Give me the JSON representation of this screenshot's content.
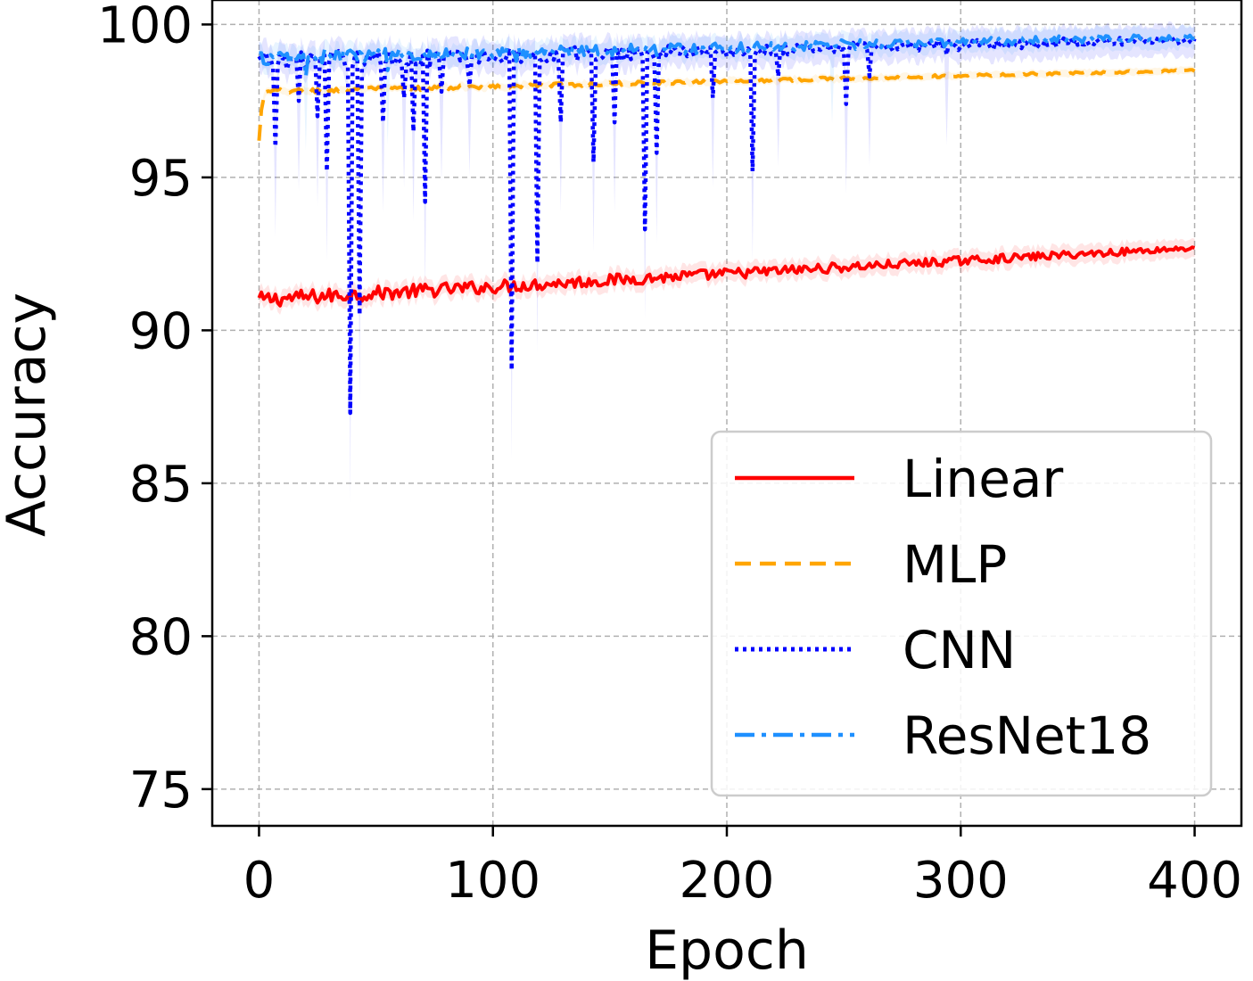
{
  "chart_data": {
    "type": "line",
    "title": "",
    "xlabel": "Epoch",
    "ylabel": "Accuracy",
    "xlim": [
      -20,
      420
    ],
    "ylim": [
      73.8,
      100.8
    ],
    "xticks": [
      0,
      100,
      200,
      300,
      400
    ],
    "yticks": [
      75,
      80,
      85,
      90,
      95,
      100
    ],
    "grid": true,
    "legend_position": "lower-right",
    "series": [
      {
        "name": "Linear",
        "color": "#ff0000",
        "style": "solid",
        "start": 91.0,
        "end": 92.7,
        "noise": 0.25,
        "band": 0.3,
        "dips": []
      },
      {
        "name": "MLP",
        "color": "#ffa500",
        "style": "dashed",
        "start": 97.8,
        "end": 98.5,
        "noise": 0.08,
        "band": 0.12,
        "initial": [
          96.2,
          97.2,
          97.6,
          97.8
        ],
        "dips": []
      },
      {
        "name": "CNN",
        "color": "#0000ff",
        "style": "dotted",
        "start": 98.8,
        "end": 99.5,
        "noise": 0.3,
        "band": 0.5,
        "dips": [
          {
            "epoch": 7,
            "value": 96.0
          },
          {
            "epoch": 17,
            "value": 97.5
          },
          {
            "epoch": 25,
            "value": 97.0
          },
          {
            "epoch": 29,
            "value": 95.2
          },
          {
            "epoch": 39,
            "value": 87.3
          },
          {
            "epoch": 43,
            "value": 90.5
          },
          {
            "epoch": 53,
            "value": 96.8
          },
          {
            "epoch": 62,
            "value": 97.6
          },
          {
            "epoch": 66,
            "value": 96.5
          },
          {
            "epoch": 71,
            "value": 94.2
          },
          {
            "epoch": 78,
            "value": 97.8
          },
          {
            "epoch": 90,
            "value": 98.0
          },
          {
            "epoch": 108,
            "value": 88.7
          },
          {
            "epoch": 119,
            "value": 92.2
          },
          {
            "epoch": 129,
            "value": 96.8
          },
          {
            "epoch": 143,
            "value": 95.5
          },
          {
            "epoch": 152,
            "value": 96.8
          },
          {
            "epoch": 165,
            "value": 93.3
          },
          {
            "epoch": 170,
            "value": 95.8
          },
          {
            "epoch": 194,
            "value": 97.6
          },
          {
            "epoch": 211,
            "value": 95.2
          },
          {
            "epoch": 222,
            "value": 98.3
          },
          {
            "epoch": 251,
            "value": 97.4
          },
          {
            "epoch": 261,
            "value": 98.3
          },
          {
            "epoch": 294,
            "value": 99.0
          }
        ]
      },
      {
        "name": "ResNet18",
        "color": "#1e90ff",
        "style": "dashdot",
        "start": 98.9,
        "end": 99.6,
        "noise": 0.25,
        "band": 0.35,
        "dips": [
          {
            "epoch": 20,
            "value": 98.3
          },
          {
            "epoch": 55,
            "value": 98.5
          },
          {
            "epoch": 110,
            "value": 98.8
          },
          {
            "epoch": 170,
            "value": 99.0
          },
          {
            "epoch": 245,
            "value": 99.2
          }
        ]
      }
    ]
  }
}
